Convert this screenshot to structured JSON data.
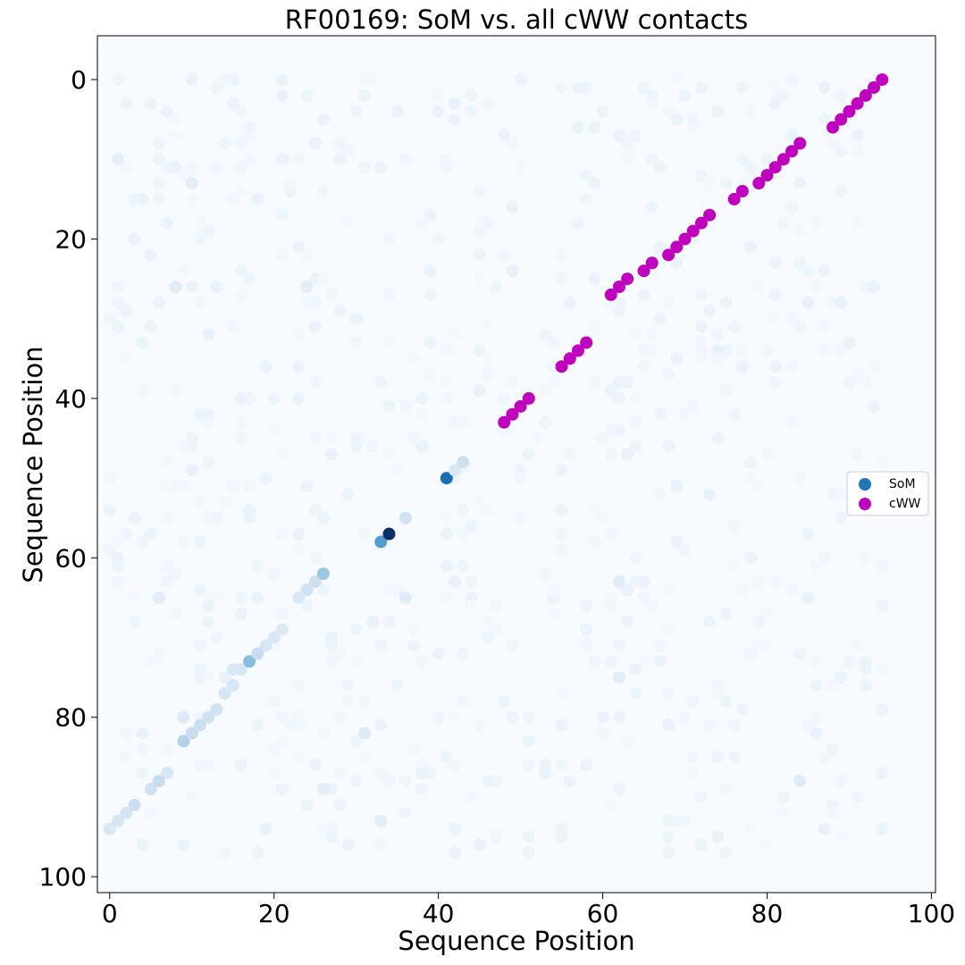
{
  "chart_data": {
    "type": "scatter",
    "title": "RF00169: SoM vs. all cWW contacts",
    "xlabel": "Sequence Position",
    "ylabel": "Sequence Position",
    "xlim": [
      -1.5,
      100.5
    ],
    "ylim": [
      102,
      -5.5
    ],
    "y_inverted": true,
    "xticks": [
      0,
      20,
      40,
      60,
      80,
      100
    ],
    "yticks": [
      0,
      20,
      40,
      60,
      80,
      100
    ],
    "grid": false,
    "legend_position": "center-right",
    "background_color": "#f7fbff",
    "colormap": "Blues",
    "series": [
      {
        "name": "SoM",
        "color": "#1f77b4",
        "points_lower_triangle": [
          {
            "x": 0,
            "y": 94,
            "v": 0.1
          },
          {
            "x": 1,
            "y": 93,
            "v": 0.12
          },
          {
            "x": 2,
            "y": 92,
            "v": 0.13
          },
          {
            "x": 3,
            "y": 91,
            "v": 0.18
          },
          {
            "x": 5,
            "y": 89,
            "v": 0.16
          },
          {
            "x": 6,
            "y": 88,
            "v": 0.2
          },
          {
            "x": 7,
            "y": 87,
            "v": 0.12
          },
          {
            "x": 9,
            "y": 83,
            "v": 0.28
          },
          {
            "x": 10,
            "y": 82,
            "v": 0.2
          },
          {
            "x": 11,
            "y": 81,
            "v": 0.18
          },
          {
            "x": 12,
            "y": 80,
            "v": 0.16
          },
          {
            "x": 13,
            "y": 79,
            "v": 0.15
          },
          {
            "x": 14,
            "y": 77,
            "v": 0.12
          },
          {
            "x": 15,
            "y": 76,
            "v": 0.11
          },
          {
            "x": 16,
            "y": 74,
            "v": 0.12
          },
          {
            "x": 15,
            "y": 74,
            "v": 0.1
          },
          {
            "x": 17,
            "y": 73,
            "v": 0.4
          },
          {
            "x": 18,
            "y": 72,
            "v": 0.2
          },
          {
            "x": 19,
            "y": 71,
            "v": 0.12
          },
          {
            "x": 20,
            "y": 70,
            "v": 0.1
          },
          {
            "x": 21,
            "y": 69,
            "v": 0.09
          },
          {
            "x": 23,
            "y": 65,
            "v": 0.1
          },
          {
            "x": 24,
            "y": 64,
            "v": 0.16
          },
          {
            "x": 25,
            "y": 63,
            "v": 0.18
          },
          {
            "x": 26,
            "y": 62,
            "v": 0.35
          },
          {
            "x": 33,
            "y": 58,
            "v": 0.55
          },
          {
            "x": 34,
            "y": 57,
            "v": 1.0
          },
          {
            "x": 36,
            "y": 55,
            "v": 0.15
          },
          {
            "x": 41,
            "y": 50,
            "v": 0.75
          },
          {
            "x": 42,
            "y": 49,
            "v": 0.1
          },
          {
            "x": 43,
            "y": 48,
            "v": 0.17
          },
          {
            "x": 9,
            "y": 80,
            "v": 0.08
          },
          {
            "x": 31,
            "y": 82,
            "v": 0.08
          },
          {
            "x": 36,
            "y": 65,
            "v": 0.07
          },
          {
            "x": 62,
            "y": 63,
            "v": 0.07
          },
          {
            "x": 84,
            "y": 88,
            "v": 0.07
          },
          {
            "x": 24,
            "y": 26,
            "v": 0.06
          },
          {
            "x": 8,
            "y": 26,
            "v": 0.06
          },
          {
            "x": 10,
            "y": 13,
            "v": 0.06
          },
          {
            "x": 33,
            "y": 93,
            "v": 0.06
          },
          {
            "x": 26,
            "y": 89,
            "v": 0.06
          },
          {
            "x": 1,
            "y": 10,
            "v": 0.05
          },
          {
            "x": 6,
            "y": 65,
            "v": 0.06
          },
          {
            "x": 62,
            "y": 75,
            "v": 0.06
          }
        ]
      },
      {
        "name": "cWW",
        "color": "#bf00bf",
        "points": [
          {
            "x": 48,
            "y": 43
          },
          {
            "x": 49,
            "y": 42
          },
          {
            "x": 50,
            "y": 41
          },
          {
            "x": 51,
            "y": 40
          },
          {
            "x": 55,
            "y": 36
          },
          {
            "x": 56,
            "y": 35
          },
          {
            "x": 57,
            "y": 34
          },
          {
            "x": 58,
            "y": 33
          },
          {
            "x": 61,
            "y": 27
          },
          {
            "x": 62,
            "y": 26
          },
          {
            "x": 63,
            "y": 25
          },
          {
            "x": 65,
            "y": 24
          },
          {
            "x": 66,
            "y": 23
          },
          {
            "x": 68,
            "y": 22
          },
          {
            "x": 69,
            "y": 21
          },
          {
            "x": 70,
            "y": 20
          },
          {
            "x": 71,
            "y": 19
          },
          {
            "x": 72,
            "y": 18
          },
          {
            "x": 73,
            "y": 17
          },
          {
            "x": 76,
            "y": 15
          },
          {
            "x": 77,
            "y": 14
          },
          {
            "x": 79,
            "y": 13
          },
          {
            "x": 80,
            "y": 12
          },
          {
            "x": 81,
            "y": 11
          },
          {
            "x": 82,
            "y": 10
          },
          {
            "x": 83,
            "y": 9
          },
          {
            "x": 84,
            "y": 8
          },
          {
            "x": 88,
            "y": 6
          },
          {
            "x": 89,
            "y": 5
          },
          {
            "x": 90,
            "y": 4
          },
          {
            "x": 91,
            "y": 3
          },
          {
            "x": 92,
            "y": 2
          },
          {
            "x": 93,
            "y": 1
          },
          {
            "x": 94,
            "y": 0
          }
        ]
      }
    ],
    "legend": [
      {
        "label": "SoM",
        "color": "#1f77b4"
      },
      {
        "label": "cWW",
        "color": "#bf00bf"
      }
    ]
  }
}
